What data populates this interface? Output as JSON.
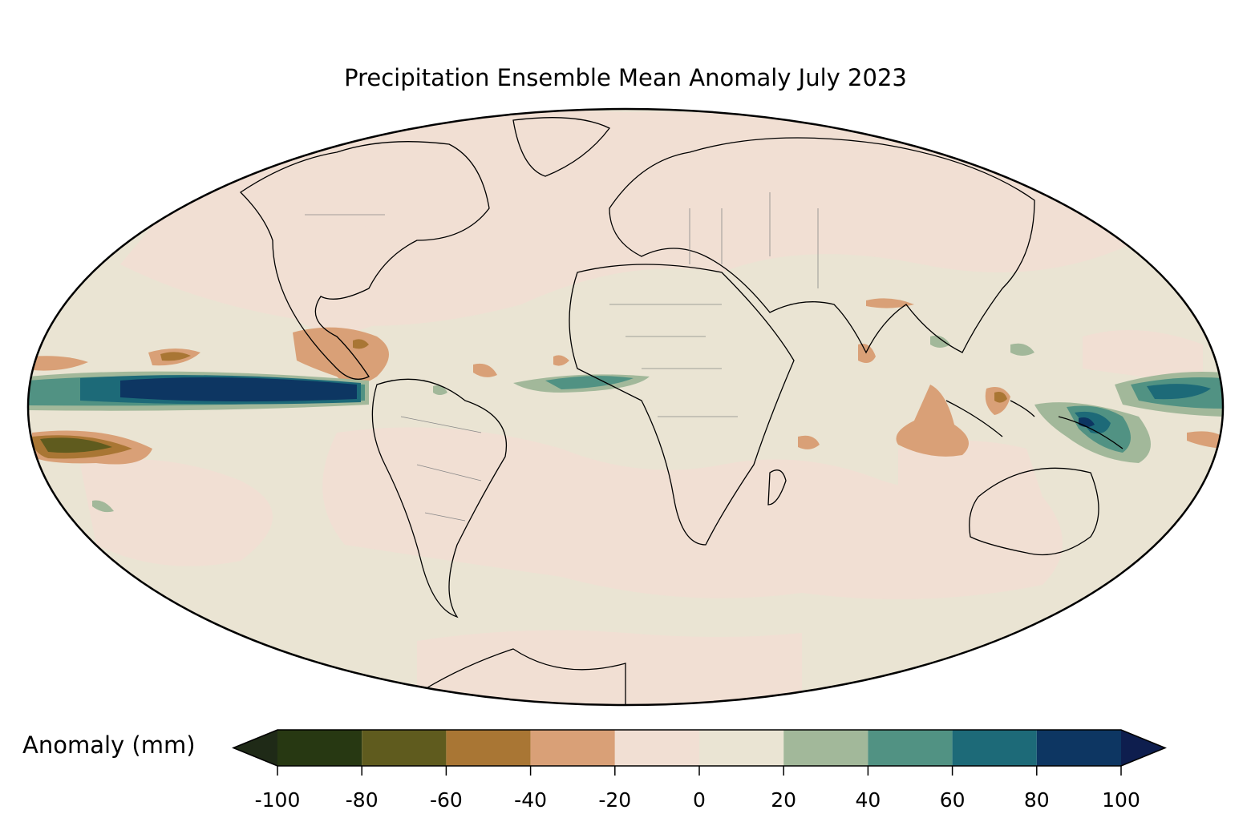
{
  "title": "Precipitation Ensemble Mean Anomaly July 2023",
  "colorbar": {
    "label": "Anomaly (mm)",
    "ticks": [
      "-100",
      "-80",
      "-60",
      "-40",
      "-20",
      "0",
      "20",
      "40",
      "60",
      "80",
      "100"
    ],
    "bins": [
      {
        "min": -100,
        "max": -80,
        "color": "#273812"
      },
      {
        "min": -80,
        "max": -60,
        "color": "#5f5b1e"
      },
      {
        "min": -60,
        "max": -40,
        "color": "#a97634"
      },
      {
        "min": -40,
        "max": -20,
        "color": "#d9a077"
      },
      {
        "min": -20,
        "max": 0,
        "color": "#f1dfd3"
      },
      {
        "min": 0,
        "max": 20,
        "color": "#eae4d3"
      },
      {
        "min": 20,
        "max": 40,
        "color": "#a2b89a"
      },
      {
        "min": 40,
        "max": 60,
        "color": "#519283"
      },
      {
        "min": 60,
        "max": 80,
        "color": "#1d6a78"
      },
      {
        "min": 80,
        "max": 100,
        "color": "#0d3662"
      }
    ],
    "under_color": "#1f2a17",
    "over_color": "#0e1e4e"
  },
  "map": {
    "projection": "Mollweide",
    "ocean_color": "#eae4d3",
    "land_outline_color": "#000000",
    "border_color": "#888888"
  }
}
